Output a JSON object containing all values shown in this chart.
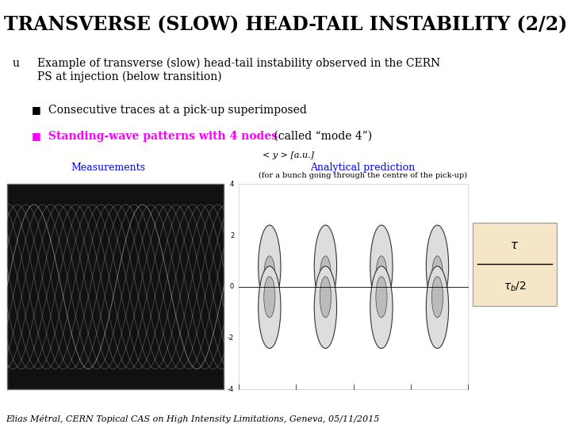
{
  "title": "TRANSVERSE (SLOW) HEAD-TAIL INSTABILITY (2/2)",
  "title_fontsize": 17,
  "title_color": "#000000",
  "background_color": "#ffffff",
  "bullet_u_text": "Example of transverse (slow) head-tail instability observed in the CERN\nPS at injection (below transition)",
  "bullet1_text": "Consecutive traces at a pick-up superimposed",
  "bullet2_magenta": "Standing-wave patterns with 4 nodes",
  "bullet2_black": " (called “mode 4”)",
  "label_measurements": "Measurements",
  "label_analytical": "Analytical prediction",
  "label_analytical_sub": "(for a bunch going through the centre of the pick-up)",
  "label_yaxis": "< y > [a.u.]",
  "footnote": "Elias Métral, CERN Topical CAS on High Intensity Limitations, Geneva, 05/11/2015",
  "footnote_fontsize": 8,
  "magenta": "#FF00FF",
  "blue": "#0000FF",
  "black": "#000000"
}
